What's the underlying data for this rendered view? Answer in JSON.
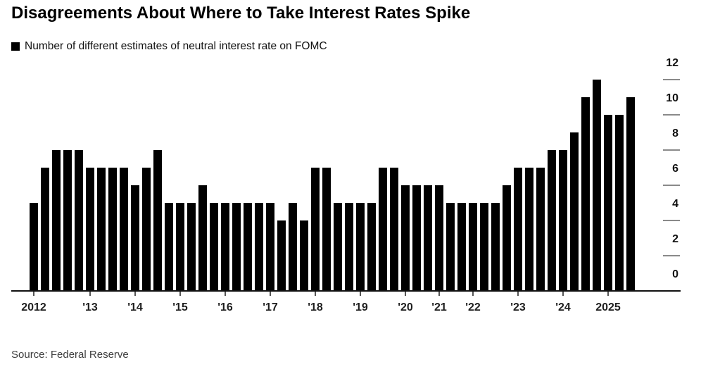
{
  "chart_data": {
    "type": "bar",
    "title": "Disagreements About Where to Take Interest Rates Spike",
    "legend": "Number of different estimates of neutral interest rate on FOMC",
    "source": "Source: Federal Reserve",
    "bar_color": "#000000",
    "ylim": [
      0,
      12
    ],
    "yticks": [
      0,
      2,
      4,
      6,
      8,
      10,
      12
    ],
    "grid": "off",
    "legend_position": "top-left",
    "yaxis_position": "right",
    "years": [
      {
        "label": "2012",
        "values": [
          5,
          7,
          8,
          8,
          8
        ]
      },
      {
        "label": "'13",
        "values": [
          7,
          7,
          7,
          7
        ]
      },
      {
        "label": "'14",
        "values": [
          6,
          7,
          8,
          5
        ]
      },
      {
        "label": "'15",
        "values": [
          5,
          5,
          6,
          5
        ]
      },
      {
        "label": "'16",
        "values": [
          5,
          5,
          5,
          5
        ]
      },
      {
        "label": "'17",
        "values": [
          5,
          4,
          5,
          4
        ]
      },
      {
        "label": "'18",
        "values": [
          7,
          7,
          5,
          5
        ]
      },
      {
        "label": "'19",
        "values": [
          5,
          5,
          7,
          7
        ]
      },
      {
        "label": "'20",
        "values": [
          6,
          6,
          6
        ]
      },
      {
        "label": "'21",
        "values": [
          6,
          5,
          5
        ]
      },
      {
        "label": "'22",
        "values": [
          5,
          5,
          5,
          6
        ]
      },
      {
        "label": "'23",
        "values": [
          7,
          7,
          7,
          8
        ]
      },
      {
        "label": "'24",
        "values": [
          8,
          9,
          11,
          12
        ]
      },
      {
        "label": "2025",
        "values": [
          10,
          10,
          11
        ]
      }
    ]
  }
}
